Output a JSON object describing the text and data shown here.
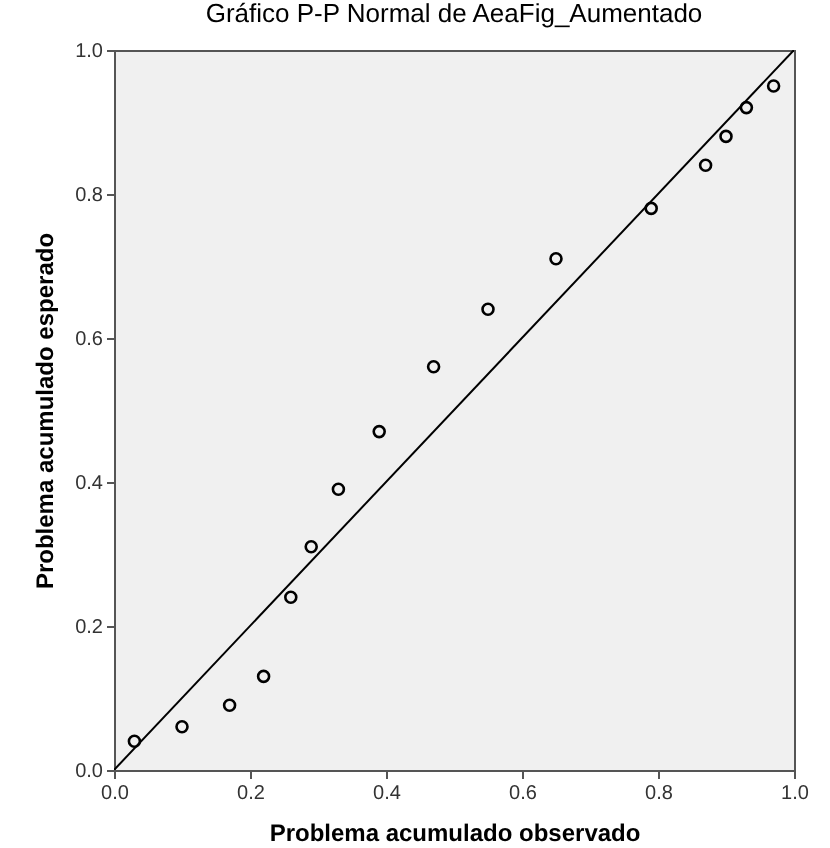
{
  "chart_data": {
    "type": "scatter",
    "title": "Gráfico P-P Normal de AeaFig_Aumentado",
    "xlabel": "Problema acumulado observado",
    "ylabel": "Problema acumulado esperado",
    "xlim": [
      0,
      1
    ],
    "ylim": [
      0,
      1
    ],
    "xticks": [
      {
        "value": 0,
        "label": "0.0"
      },
      0.2,
      0.4,
      0.6,
      0.8,
      {
        "value": 1,
        "label": "1.0"
      }
    ],
    "yticks": [
      {
        "value": 0,
        "label": "0.0"
      },
      0.2,
      0.4,
      0.6,
      0.8,
      {
        "value": 1,
        "label": "1.0"
      }
    ],
    "grid": false,
    "series": [
      {
        "marker": "circle",
        "color": "#000000",
        "x": [
          0.03,
          0.1,
          0.17,
          0.22,
          0.26,
          0.29,
          0.33,
          0.39,
          0.47,
          0.55,
          0.65,
          0.79,
          0.87,
          0.9,
          0.93,
          0.97
        ],
        "values": [
          0.04,
          0.06,
          0.09,
          0.13,
          0.24,
          0.31,
          0.39,
          0.47,
          0.56,
          0.64,
          0.71,
          0.78,
          0.84,
          0.88,
          0.92,
          0.95
        ]
      },
      {
        "type": "line",
        "color": "#000000",
        "x": [
          0,
          1
        ],
        "values": [
          0,
          1
        ]
      }
    ]
  }
}
